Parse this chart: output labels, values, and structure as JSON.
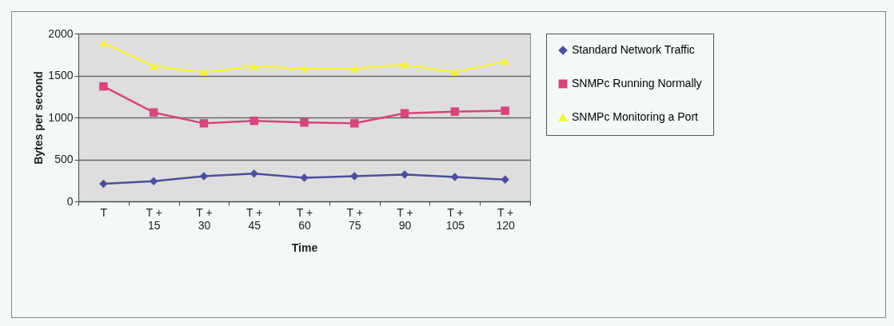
{
  "chart_data": {
    "type": "line",
    "xlabel": "Time",
    "ylabel": "Bytes per second",
    "categories": [
      "T",
      "T + 15",
      "T + 30",
      "T + 45",
      "T + 60",
      "T + 75",
      "T + 90",
      "T + 105",
      "T + 120"
    ],
    "series": [
      {
        "name": "Standard Network Traffic",
        "color": "#4b4f9c",
        "marker": "diamond",
        "values": [
          210,
          240,
          300,
          330,
          280,
          300,
          320,
          290,
          260
        ]
      },
      {
        "name": "SNMPc Running Normally",
        "color": "#d6457c",
        "marker": "square",
        "values": [
          1370,
          1060,
          930,
          960,
          940,
          930,
          1050,
          1070,
          1080
        ]
      },
      {
        "name": "SNMPc Monitoring a Port",
        "color": "#f2f03a",
        "marker": "triangle",
        "values": [
          1890,
          1610,
          1540,
          1610,
          1580,
          1580,
          1630,
          1540,
          1670
        ]
      }
    ],
    "ylim": [
      0,
      2000
    ],
    "yticks": [
      0,
      500,
      1000,
      1500,
      2000
    ],
    "grid": "y",
    "legend": "right"
  }
}
